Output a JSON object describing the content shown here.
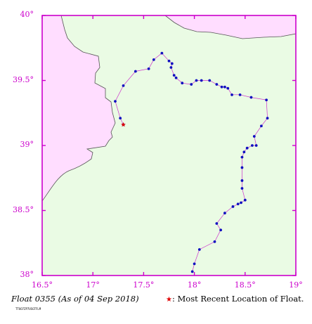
{
  "map": {
    "lon_range": [
      16.5,
      19.0
    ],
    "lat_range": [
      38.0,
      40.0
    ],
    "colors": {
      "water": "#eafbe4",
      "land": "#ffddff",
      "frame": "#cc00cc",
      "track": "#cc33cc",
      "point": "#1010c0",
      "latest": "#e00000",
      "coast": "#555555"
    },
    "y_ticks": [
      {
        "label": "40°",
        "value": 40.0
      },
      {
        "label": "39.5°",
        "value": 39.5
      },
      {
        "label": "39°",
        "value": 39.0
      },
      {
        "label": "38.5°",
        "value": 38.5
      },
      {
        "label": "38°",
        "value": 38.0
      }
    ],
    "x_ticks": [
      {
        "label": "16.5°",
        "value": 16.5
      },
      {
        "label": "17°",
        "value": 17.0
      },
      {
        "label": "17.5°",
        "value": 17.5
      },
      {
        "label": "18°",
        "value": 18.0
      },
      {
        "label": "18.5°",
        "value": 18.5
      },
      {
        "label": "19°",
        "value": 19.0
      }
    ],
    "track": [
      [
        17.98,
        38.03
      ],
      [
        18.0,
        38.09
      ],
      [
        18.05,
        38.2
      ],
      [
        18.2,
        38.26
      ],
      [
        18.26,
        38.35
      ],
      [
        18.22,
        38.4
      ],
      [
        18.3,
        38.48
      ],
      [
        18.38,
        38.53
      ],
      [
        18.43,
        38.55
      ],
      [
        18.46,
        38.56
      ],
      [
        18.5,
        38.58
      ],
      [
        18.47,
        38.67
      ],
      [
        18.47,
        38.73
      ],
      [
        18.47,
        38.83
      ],
      [
        18.47,
        38.91
      ],
      [
        18.49,
        38.95
      ],
      [
        18.52,
        38.98
      ],
      [
        18.57,
        39.0
      ],
      [
        18.61,
        39.0
      ],
      [
        18.59,
        39.07
      ],
      [
        18.66,
        39.15
      ],
      [
        18.72,
        39.21
      ],
      [
        18.71,
        39.35
      ],
      [
        18.56,
        39.37
      ],
      [
        18.45,
        39.39
      ],
      [
        18.37,
        39.39
      ],
      [
        18.33,
        39.44
      ],
      [
        18.3,
        39.45
      ],
      [
        18.27,
        39.45
      ],
      [
        18.22,
        39.47
      ],
      [
        18.15,
        39.5
      ],
      [
        18.07,
        39.5
      ],
      [
        18.02,
        39.5
      ],
      [
        17.97,
        39.47
      ],
      [
        17.88,
        39.48
      ],
      [
        17.82,
        39.52
      ],
      [
        17.8,
        39.54
      ],
      [
        17.77,
        39.6
      ],
      [
        17.78,
        39.63
      ],
      [
        17.75,
        39.65
      ],
      [
        17.68,
        39.71
      ],
      [
        17.6,
        39.66
      ],
      [
        17.55,
        39.59
      ],
      [
        17.42,
        39.57
      ],
      [
        17.3,
        39.46
      ],
      [
        17.22,
        39.34
      ],
      [
        17.27,
        39.21
      ],
      [
        17.3,
        39.16
      ]
    ],
    "latest": [
      17.3,
      39.16
    ]
  },
  "caption": "Float 0355 (As of 04 Sep 2018)",
  "legend": {
    "star": "★",
    "text": ": Most Recent Location of Float."
  },
  "stamp": "TTUO7ZP7USGTFLM"
}
